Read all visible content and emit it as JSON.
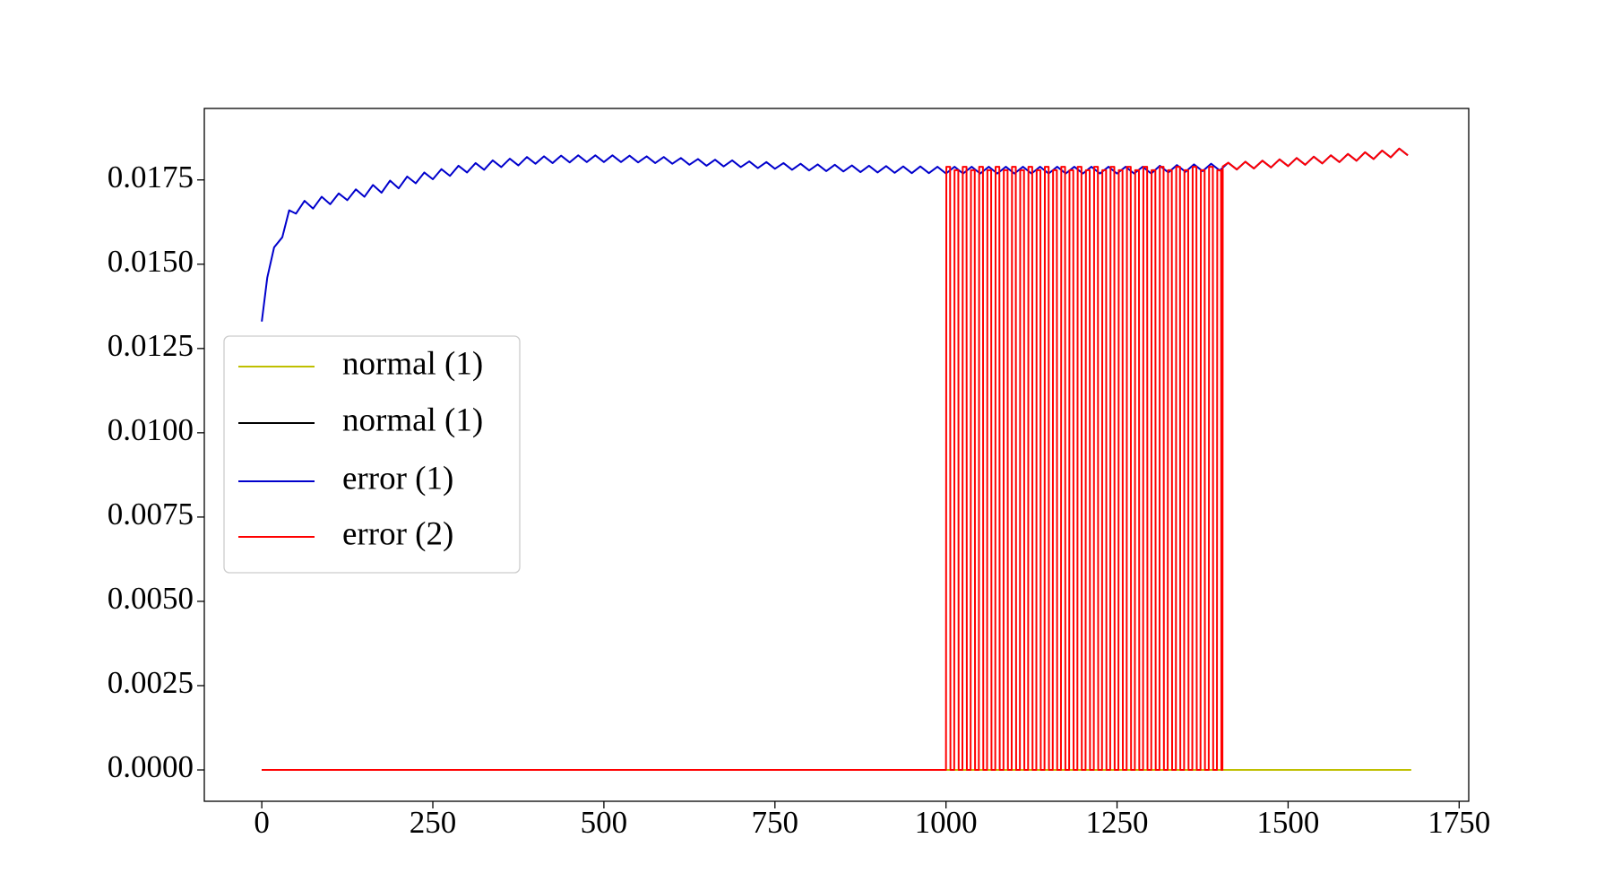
{
  "chart_data": {
    "type": "line",
    "xlim": [
      -84,
      1764
    ],
    "xticks": [
      0,
      250,
      500,
      750,
      1000,
      1250,
      1500,
      1750
    ],
    "ylim": [
      -0.00093,
      0.01962
    ],
    "yticks": [
      {
        "value": 0,
        "label": "0.0000"
      },
      0.0025,
      {
        "value": 0.005,
        "label": "0.0050"
      },
      0.0075,
      {
        "value": 0.01,
        "label": "0.0100"
      },
      0.0125,
      {
        "value": 0.015,
        "label": "0.0150"
      },
      0.0175
    ],
    "grid": false,
    "legend": "center left",
    "series": [
      {
        "name": "normal (1)",
        "color": "#bfbf00",
        "x": [
          0,
          1680
        ],
        "values": [
          0,
          0
        ]
      },
      {
        "name": "normal (1)",
        "color": "#000000",
        "x": [
          0,
          1000
        ],
        "values": [
          0,
          0
        ]
      },
      {
        "name": "error (1)",
        "color": "#0000cc",
        "x": [
          0,
          8,
          18,
          30,
          40,
          50,
          62.5,
          75,
          87.5,
          100,
          112.5,
          125,
          137.5,
          150,
          162.5,
          175,
          187.5,
          200,
          212.5,
          225,
          237.5,
          250,
          262.5,
          275,
          287.5,
          300,
          312.5,
          325,
          337.5,
          350,
          362.5,
          375,
          387.5,
          400,
          412.5,
          425,
          437.5,
          450,
          462.5,
          475,
          487.5,
          500,
          512.5,
          525,
          537.5,
          550,
          562.5,
          575,
          587.5,
          600,
          612.5,
          625,
          637.5,
          650,
          662.5,
          675,
          687.5,
          700,
          712.5,
          725,
          737.5,
          750,
          762.5,
          775,
          787.5,
          800,
          812.5,
          825,
          837.5,
          850,
          862.5,
          875,
          887.5,
          900,
          912.5,
          925,
          937.5,
          950,
          962.5,
          975,
          987.5,
          1000,
          1012.5,
          1025,
          1037.5,
          1050,
          1062.5,
          1075,
          1087.5,
          1100,
          1112.5,
          1125,
          1137.5,
          1150,
          1162.5,
          1175,
          1187.5,
          1200,
          1212.5,
          1225,
          1237.5,
          1250,
          1262.5,
          1275,
          1287.5,
          1300,
          1312.5,
          1325,
          1337.5,
          1350,
          1362.5,
          1375,
          1387.5,
          1400,
          1412.5,
          1425,
          1437.5,
          1450,
          1462.5,
          1475,
          1487.5,
          1500,
          1512.5,
          1525,
          1537.5,
          1550,
          1562.5,
          1575,
          1587.5,
          1600,
          1612.5,
          1625,
          1637.5,
          1650,
          1662.5,
          1675
        ],
        "values": [
          0.0133,
          0.0146,
          0.0155,
          0.0158,
          0.0166,
          0.0165,
          0.01688,
          0.01665,
          0.017,
          0.01678,
          0.0171,
          0.0169,
          0.01722,
          0.017,
          0.01735,
          0.01712,
          0.01748,
          0.01725,
          0.0176,
          0.0174,
          0.01772,
          0.01752,
          0.01782,
          0.01762,
          0.01792,
          0.01772,
          0.018,
          0.0178,
          0.01808,
          0.01788,
          0.01813,
          0.01793,
          0.01818,
          0.01798,
          0.0182,
          0.018,
          0.01822,
          0.01802,
          0.01823,
          0.01803,
          0.01823,
          0.01803,
          0.01823,
          0.01803,
          0.01822,
          0.01802,
          0.0182,
          0.018,
          0.01818,
          0.01798,
          0.01815,
          0.01795,
          0.01812,
          0.01792,
          0.0181,
          0.0179,
          0.01808,
          0.01788,
          0.01805,
          0.01785,
          0.01803,
          0.01783,
          0.018,
          0.0178,
          0.01798,
          0.01778,
          0.01796,
          0.01776,
          0.01795,
          0.01775,
          0.01793,
          0.01773,
          0.01792,
          0.01772,
          0.01791,
          0.01771,
          0.0179,
          0.0177,
          0.0179,
          0.0177,
          0.01789,
          0.01769,
          0.01789,
          0.01769,
          0.01789,
          0.01769,
          0.01789,
          0.01769,
          0.01789,
          0.01769,
          0.01789,
          0.01769,
          0.01789,
          0.01769,
          0.01789,
          0.01769,
          0.01789,
          0.01769,
          0.01789,
          0.01769,
          0.01789,
          0.01769,
          0.01789,
          0.01769,
          0.01789,
          0.01769,
          0.01792,
          0.01772,
          0.01794,
          0.01774,
          0.01796,
          0.01776,
          0.01798,
          0.01778,
          0.01801,
          0.01781,
          0.01804,
          0.01784,
          0.01807,
          0.01787,
          0.01811,
          0.01791,
          0.01815,
          0.01795,
          0.01819,
          0.01799,
          0.01823,
          0.01803,
          0.01827,
          0.01807,
          0.01832,
          0.01812,
          0.01837,
          0.01817,
          0.01843,
          0.01823
        ]
      },
      {
        "name": "error (2)",
        "color": "#ff0000",
        "x": [
          0,
          1000,
          1000.5,
          1006,
          1006.5,
          1012,
          1012.5,
          1018,
          1018.5,
          1024,
          1024.5,
          1030,
          1030.5,
          1036,
          1036.5,
          1042,
          1042.5,
          1048,
          1048.5,
          1054,
          1054.5,
          1060,
          1060.5,
          1066,
          1066.5,
          1072,
          1072.5,
          1078,
          1078.5,
          1084,
          1084.5,
          1090,
          1090.5,
          1096,
          1096.5,
          1102,
          1102.5,
          1108,
          1108.5,
          1114,
          1114.5,
          1120,
          1120.5,
          1126,
          1126.5,
          1132,
          1132.5,
          1138,
          1138.5,
          1144,
          1144.5,
          1150,
          1150.5,
          1156,
          1156.5,
          1162,
          1162.5,
          1168,
          1168.5,
          1174,
          1174.5,
          1180,
          1180.5,
          1186,
          1186.5,
          1192,
          1192.5,
          1198,
          1198.5,
          1204,
          1204.5,
          1210,
          1210.5,
          1216,
          1216.5,
          1222,
          1222.5,
          1228,
          1228.5,
          1234,
          1234.5,
          1240,
          1240.5,
          1246,
          1246.5,
          1252,
          1252.5,
          1258,
          1258.5,
          1264,
          1264.5,
          1270,
          1270.5,
          1276,
          1276.5,
          1282,
          1282.5,
          1288,
          1288.5,
          1294,
          1294.5,
          1300,
          1300.5,
          1306,
          1306.5,
          1312,
          1312.5,
          1318,
          1318.5,
          1324,
          1324.5,
          1330,
          1330.5,
          1336,
          1336.5,
          1342,
          1342.5,
          1348,
          1348.5,
          1354,
          1354.5,
          1360,
          1360.5,
          1366,
          1366.5,
          1372,
          1372.5,
          1378,
          1378.5,
          1384,
          1384.5,
          1390,
          1390.5,
          1396,
          1396.5,
          1402,
          1402.5,
          1404,
          1404.5,
          1412.5,
          1425,
          1437.5,
          1450,
          1462.5,
          1475,
          1487.5,
          1500,
          1512.5,
          1525,
          1537.5,
          1550,
          1562.5,
          1575,
          1587.5,
          1600,
          1612.5,
          1625,
          1637.5,
          1650,
          1662.5,
          1675
        ],
        "values": [
          0,
          0,
          0.01789,
          0.01789,
          0,
          0,
          0.01779,
          0.01779,
          0,
          0,
          0.01789,
          0.01789,
          0,
          0,
          0.01779,
          0.01779,
          0,
          0,
          0.01789,
          0.01789,
          0,
          0,
          0.01779,
          0.01779,
          0,
          0,
          0.01789,
          0.01789,
          0,
          0,
          0.01779,
          0.01779,
          0,
          0,
          0.01789,
          0.01789,
          0,
          0,
          0.01779,
          0.01779,
          0,
          0,
          0.01789,
          0.01789,
          0,
          0,
          0.01779,
          0.01779,
          0,
          0,
          0.01789,
          0.01789,
          0,
          0,
          0.01779,
          0.01779,
          0,
          0,
          0.01789,
          0.01789,
          0,
          0,
          0.01779,
          0.01779,
          0,
          0,
          0.01789,
          0.01789,
          0,
          0,
          0.01779,
          0.01779,
          0,
          0,
          0.01789,
          0.01789,
          0,
          0,
          0.01779,
          0.01779,
          0,
          0,
          0.01789,
          0.01789,
          0,
          0,
          0.01779,
          0.01779,
          0,
          0,
          0.01789,
          0.01789,
          0,
          0,
          0.01779,
          0.01779,
          0,
          0,
          0.01789,
          0.01789,
          0,
          0,
          0.01779,
          0.01779,
          0,
          0,
          0.01789,
          0.01789,
          0,
          0,
          0.01779,
          0.01779,
          0,
          0,
          0.01789,
          0.01789,
          0,
          0,
          0.01779,
          0.01779,
          0,
          0,
          0.01789,
          0.01789,
          0,
          0,
          0.01779,
          0.01779,
          0,
          0,
          0.01789,
          0.01789,
          0,
          0,
          0.01779,
          0.01779,
          0,
          0,
          0.0179,
          0.01801,
          0.01781,
          0.01804,
          0.01784,
          0.01807,
          0.01787,
          0.01811,
          0.01791,
          0.01815,
          0.01795,
          0.01819,
          0.01799,
          0.01823,
          0.01803,
          0.01827,
          0.01807,
          0.01832,
          0.01812,
          0.01837,
          0.01817,
          0.01843,
          0.01823
        ]
      }
    ]
  }
}
